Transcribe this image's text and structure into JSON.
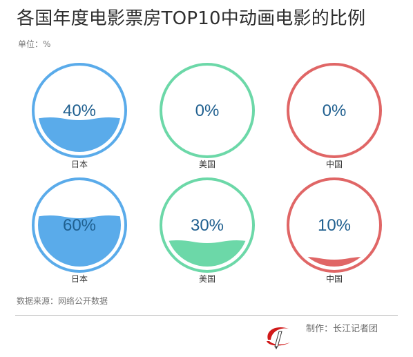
{
  "header": {
    "title": "各国年度电影票房TOP10中动画电影的比例",
    "unit": "单位：%"
  },
  "chart_data": {
    "type": "liquid-fill gauge",
    "unit": "%",
    "gauges": [
      {
        "country": "日本",
        "value": 40,
        "label": "40%",
        "color": "#5aabea"
      },
      {
        "country": "美国",
        "value": 0,
        "label": "0%",
        "color": "#6cd8a8"
      },
      {
        "country": "中国",
        "value": 0,
        "label": "0%",
        "color": "#e06666"
      },
      {
        "country": "日本",
        "value": 60,
        "label": "60%",
        "color": "#5aabea"
      },
      {
        "country": "美国",
        "value": 30,
        "label": "30%",
        "color": "#6cd8a8"
      },
      {
        "country": "中国",
        "value": 10,
        "label": "10%",
        "color": "#e06666"
      }
    ]
  },
  "footer": {
    "source": "数据来源：网络公开数据",
    "credit": "制作：长江记者团"
  },
  "colors": {
    "title": "#2e2e2e",
    "value_text": "#1f5f8f",
    "logo_red": "#d01919"
  }
}
